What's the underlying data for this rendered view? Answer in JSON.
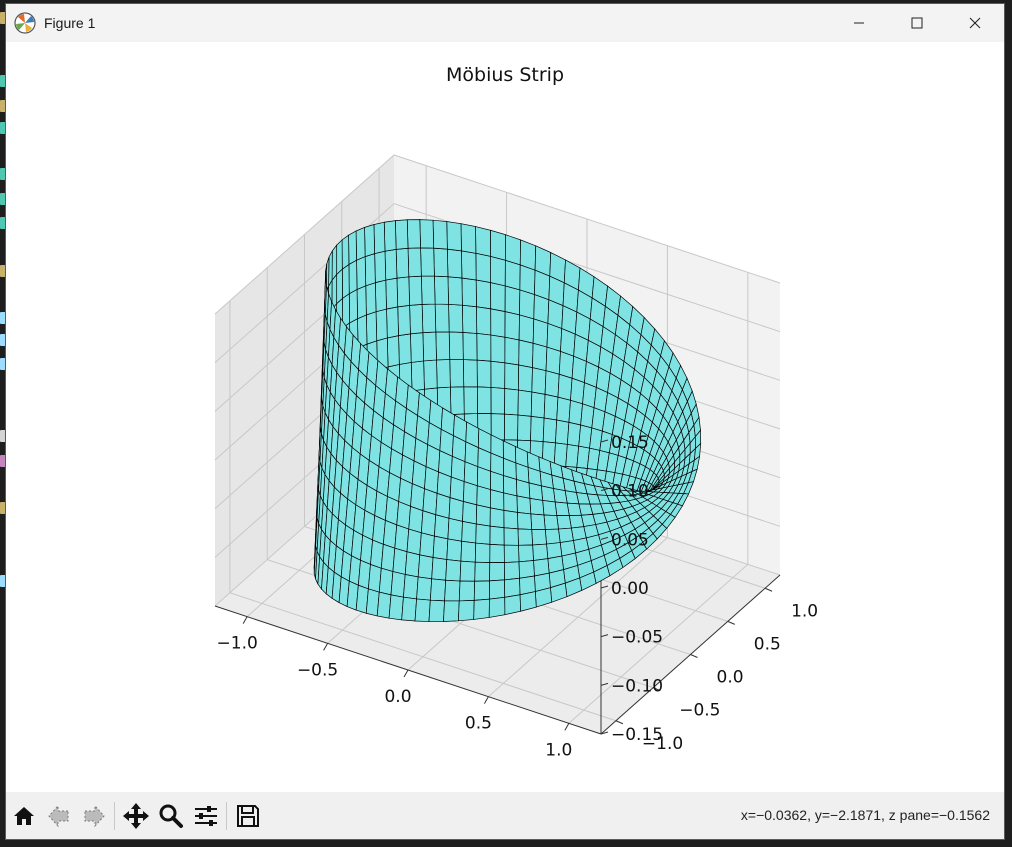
{
  "window": {
    "title": "Figure 1"
  },
  "window_controls": [
    "minimize",
    "maximize",
    "close"
  ],
  "toolbar": {
    "buttons": [
      {
        "name": "home",
        "icon": "home-icon"
      },
      {
        "name": "back",
        "icon": "back-arrow-icon"
      },
      {
        "name": "forward",
        "icon": "forward-arrow-icon"
      },
      {
        "name": "pan",
        "icon": "move-icon"
      },
      {
        "name": "zoom",
        "icon": "zoom-icon"
      },
      {
        "name": "configure",
        "icon": "sliders-icon"
      },
      {
        "name": "save",
        "icon": "save-icon"
      }
    ],
    "coords": "x=−0.0362, y=−2.1871, z pane=−0.1562"
  },
  "chart_data": {
    "type": "surface3d",
    "title": "Möbius Strip",
    "surface_color": "#7fe3e3",
    "edge_color": "#000000",
    "x_ticks": [
      "−1.0",
      "−0.5",
      "0.0",
      "0.5",
      "1.0"
    ],
    "y_ticks": [
      "−1.0",
      "−0.5",
      "0.0",
      "0.5",
      "1.0"
    ],
    "z_ticks": [
      "−0.15",
      "−0.10",
      "−0.05",
      "0.00",
      "0.05",
      "0.10",
      "0.15"
    ],
    "xlim": [
      -1.2,
      1.2
    ],
    "ylim": [
      -1.2,
      1.2
    ],
    "zlim": [
      -0.15,
      0.15
    ],
    "view": {
      "elev": 30,
      "azim": -60
    }
  }
}
